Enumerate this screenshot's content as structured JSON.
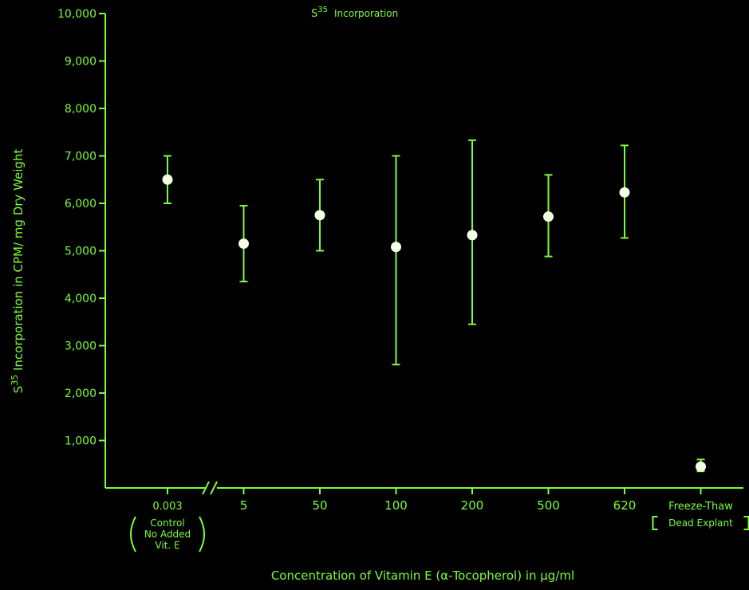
{
  "chart_data": {
    "type": "scatter",
    "title": "S35 Incorporation",
    "title_main": "S",
    "title_sup": "35",
    "title_rest": "Incorporation",
    "ylabel": "S35 Incorporation in CPM/mg Dry Weight",
    "ylabel_main": "S",
    "ylabel_sup": "35",
    "ylabel_rest": " Incorporation in CPM/ mg Dry Weight",
    "xlabel": "Concentration of Vitamin E (α-Tocopherol) in µg/ml",
    "ylim": [
      0,
      10000
    ],
    "yticks": [
      "1,000",
      "2,000",
      "3,000",
      "4,000",
      "5,000",
      "6,000",
      "7,000",
      "8,000",
      "9,000",
      "10,000"
    ],
    "axis_break_after": 0,
    "accent_color": "#7CFC3A",
    "point_color": "#F4FFE8",
    "categories": [
      {
        "label": "0.003",
        "sublabel": [
          "Control",
          "No Added",
          "Vit. E"
        ],
        "sublabel_style": "parentheses",
        "y": 6500,
        "low": 6000,
        "high": 7000
      },
      {
        "label": "5",
        "y": 5150,
        "low": 4350,
        "high": 5950
      },
      {
        "label": "50",
        "y": 5750,
        "low": 5000,
        "high": 6500
      },
      {
        "label": "100",
        "y": 5080,
        "low": 2600,
        "high": 7000
      },
      {
        "label": "200",
        "y": 5330,
        "low": 3450,
        "high": 7330
      },
      {
        "label": "500",
        "y": 5720,
        "low": 4880,
        "high": 6600
      },
      {
        "label": "620",
        "y": 6230,
        "low": 5270,
        "high": 7220
      },
      {
        "label": "Freeze-Thaw",
        "sublabel": [
          "Dead Explant"
        ],
        "sublabel_style": "brackets",
        "y": 450,
        "low": 350,
        "high": 600
      }
    ]
  }
}
